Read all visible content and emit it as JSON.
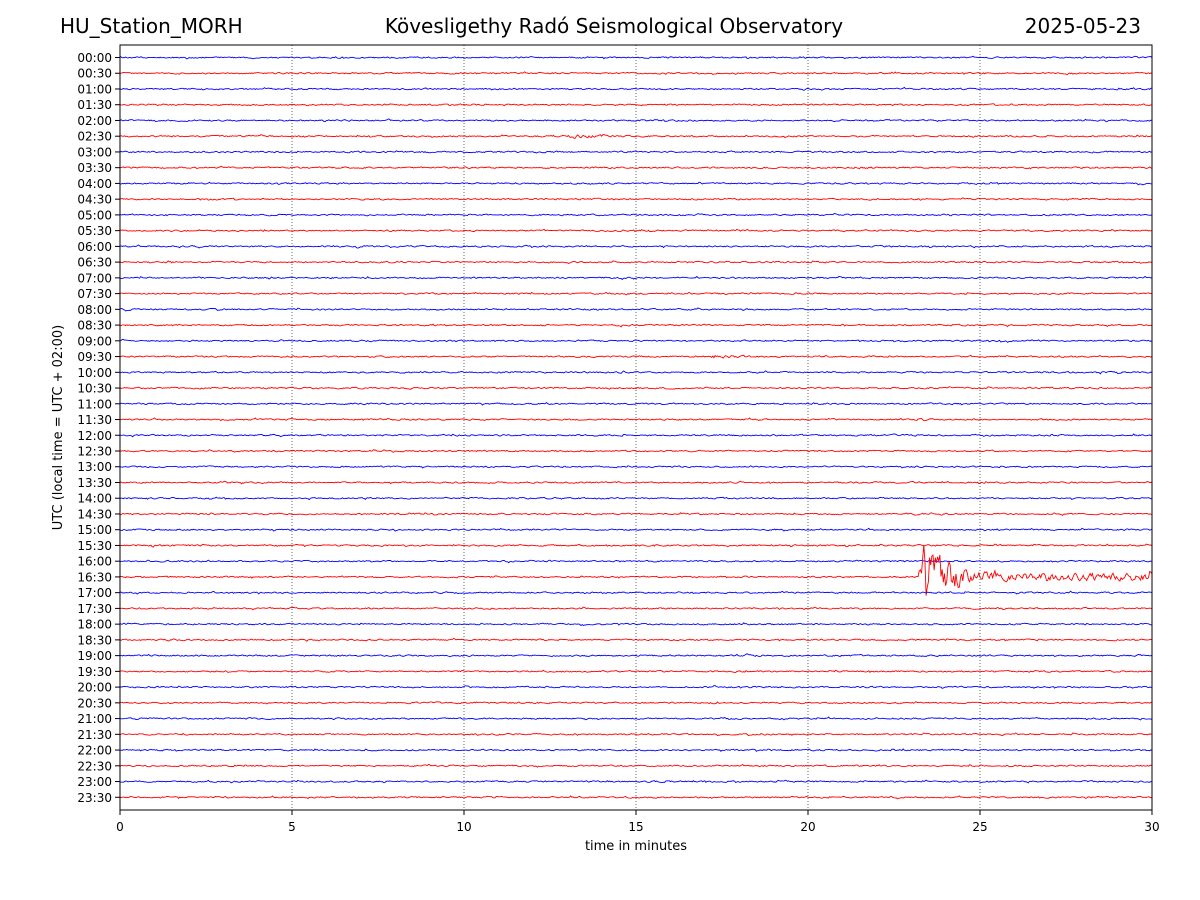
{
  "header": {
    "left": "HU_Station_MORH",
    "center": "Kövesligethy Radó Seismological Observatory",
    "right": "2025-05-23"
  },
  "chart_data": {
    "type": "line",
    "title": "Kövesligethy Radó Seismological Observatory",
    "station": "HU_Station_MORH",
    "date": "2025-05-23",
    "xlabel": "time in minutes",
    "ylabel": "UTC (local time = UTC + 02:00)",
    "xlim": [
      0,
      30
    ],
    "x_ticks": [
      0,
      5,
      10,
      15,
      20,
      25,
      30
    ],
    "x_grid": true,
    "row_labels": [
      "00:00",
      "00:30",
      "01:00",
      "01:30",
      "02:00",
      "02:30",
      "03:00",
      "03:30",
      "04:00",
      "04:30",
      "05:00",
      "05:30",
      "06:00",
      "06:30",
      "07:00",
      "07:30",
      "08:00",
      "08:30",
      "09:00",
      "09:30",
      "10:00",
      "10:30",
      "11:00",
      "11:30",
      "12:00",
      "12:30",
      "13:00",
      "13:30",
      "14:00",
      "14:30",
      "15:00",
      "15:30",
      "16:00",
      "16:30",
      "17:00",
      "17:30",
      "18:00",
      "18:30",
      "19:00",
      "19:30",
      "20:00",
      "20:30",
      "21:00",
      "21:30",
      "22:00",
      "22:30",
      "23:00",
      "23:30"
    ],
    "trace_colors": [
      "#0000ff",
      "#ff0000"
    ],
    "events": [
      {
        "row": "02:30",
        "start_min": 12.9,
        "peak_min": 13.2,
        "end_min": 14.8,
        "relative_amplitude": 3.0
      },
      {
        "row": "03:30",
        "start_min": 21.3,
        "peak_min": 21.5,
        "end_min": 23.5,
        "relative_amplitude": 2.0
      },
      {
        "row": "09:30",
        "start_min": 17.1,
        "peak_min": 17.4,
        "end_min": 18.6,
        "relative_amplitude": 3.5
      },
      {
        "row": "16:30",
        "start_min": 23.2,
        "peak_min": 23.4,
        "end_min": 30.0,
        "relative_amplitude": 45.0
      }
    ]
  }
}
